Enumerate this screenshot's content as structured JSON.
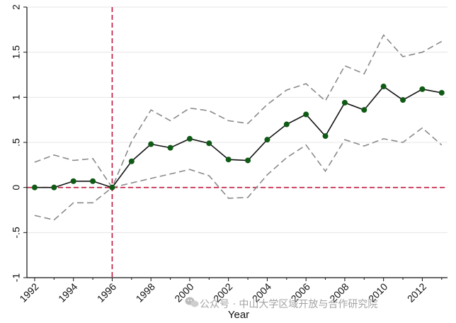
{
  "chart_data": {
    "type": "line",
    "title": "",
    "xlabel": "Year",
    "ylabel": "",
    "x": [
      1992,
      1993,
      1994,
      1995,
      1996,
      1997,
      1998,
      1999,
      2000,
      2001,
      2002,
      2003,
      2004,
      2005,
      2006,
      2007,
      2008,
      2009,
      2010,
      2011,
      2012,
      2013
    ],
    "xticks": [
      "1992",
      "1994",
      "1996",
      "1998",
      "2000",
      "2002",
      "2004",
      "2006",
      "2008",
      "2010",
      "2012"
    ],
    "yticks": [
      "-1",
      "-.5",
      "0",
      ".5",
      "1",
      "1.5",
      "2"
    ],
    "ylim": [
      -1,
      2
    ],
    "xlim": [
      1991.6,
      2013.3
    ],
    "reference_lines": {
      "vertical_x": 1996,
      "horizontal_y": 0
    },
    "series": [
      {
        "role": "estimate",
        "values": [
          0.0,
          0.0,
          0.07,
          0.07,
          0.0,
          0.29,
          0.48,
          0.44,
          0.54,
          0.49,
          0.31,
          0.3,
          0.53,
          0.7,
          0.81,
          0.57,
          0.94,
          0.86,
          1.12,
          0.97,
          1.09,
          1.05
        ]
      },
      {
        "role": "upper_ci",
        "values": [
          0.28,
          0.36,
          0.3,
          0.32,
          0.0,
          0.51,
          0.86,
          0.74,
          0.88,
          0.85,
          0.74,
          0.71,
          0.92,
          1.08,
          1.15,
          0.96,
          1.35,
          1.26,
          1.69,
          1.45,
          1.5,
          1.62
        ]
      },
      {
        "role": "lower_ci",
        "values": [
          -0.31,
          -0.36,
          -0.17,
          -0.17,
          0.0,
          0.05,
          0.1,
          0.15,
          0.2,
          0.13,
          -0.12,
          -0.11,
          0.14,
          0.33,
          0.47,
          0.18,
          0.53,
          0.46,
          0.54,
          0.5,
          0.66,
          0.47
        ]
      }
    ],
    "colors": {
      "estimate_line": "#111111",
      "marker": "#0f5a14",
      "ci_line": "#8a8a8a",
      "reference_line": "#c0143c",
      "grid": "#e4e4e4"
    },
    "grid": true
  },
  "watermark": {
    "icon": "wechat-icon",
    "text": "公众号 · 中山大学区域开放与合作研究院"
  }
}
